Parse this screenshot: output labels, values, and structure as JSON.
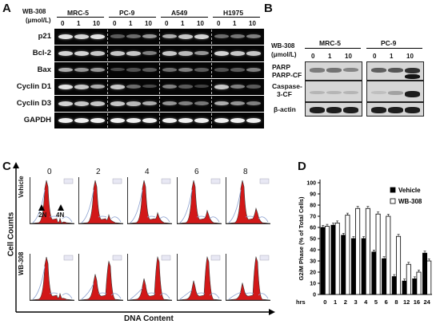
{
  "panelA": {
    "letter": "A",
    "treatment_label_1": "WB-308",
    "treatment_label_2": "(μmol/L)",
    "cell_lines": [
      "MRC-5",
      "PC-9",
      "A549",
      "H1975"
    ],
    "doses": [
      "0",
      "1",
      "10"
    ],
    "rows": [
      "p21",
      "Bcl-2",
      "Bax",
      "Cyclin D1",
      "Cyclin D3",
      "GAPDH"
    ]
  },
  "panelB": {
    "letter": "B",
    "treatment_label_1": "WB-308",
    "treatment_label_2": "(μmol/L)",
    "cell_lines": [
      "MRC-5",
      "PC-9"
    ],
    "doses": [
      "0",
      "1",
      "10"
    ],
    "rows": [
      "PARP",
      "PARP-CF",
      "Caspase-",
      "3-CF",
      "β-actin"
    ]
  },
  "panelC": {
    "letter": "C",
    "timepoints": [
      "0",
      "2",
      "4",
      "6",
      "8"
    ],
    "row_labels": [
      "Vehicle",
      "WB-308"
    ],
    "y_label": "Cell Counts",
    "x_label": "DNA Content",
    "peak_labels": [
      "2N",
      "4N"
    ]
  },
  "panelD": {
    "letter": "D"
  },
  "chart_data": {
    "type": "bar",
    "ylabel": "G2/M Phase (% of Total Cells)",
    "xlabel": "hrs",
    "categories": [
      "0",
      "1",
      "2",
      "3",
      "4",
      "5",
      "6",
      "8",
      "12",
      "16",
      "24"
    ],
    "ylim": [
      0,
      100
    ],
    "yticks": [
      "0",
      "10",
      "20",
      "30",
      "40",
      "50",
      "60",
      "70",
      "80",
      "90",
      "100"
    ],
    "legend_position": "top-right",
    "series": [
      {
        "name": "Vehicle",
        "color": "#000000",
        "values": [
          60,
          62,
          53,
          50,
          50,
          38,
          32,
          16,
          12,
          14,
          37
        ]
      },
      {
        "name": "WB-308",
        "color": "#ffffff",
        "values": [
          61,
          64,
          71,
          77,
          77,
          72,
          70,
          52,
          27,
          20,
          30
        ]
      }
    ]
  }
}
